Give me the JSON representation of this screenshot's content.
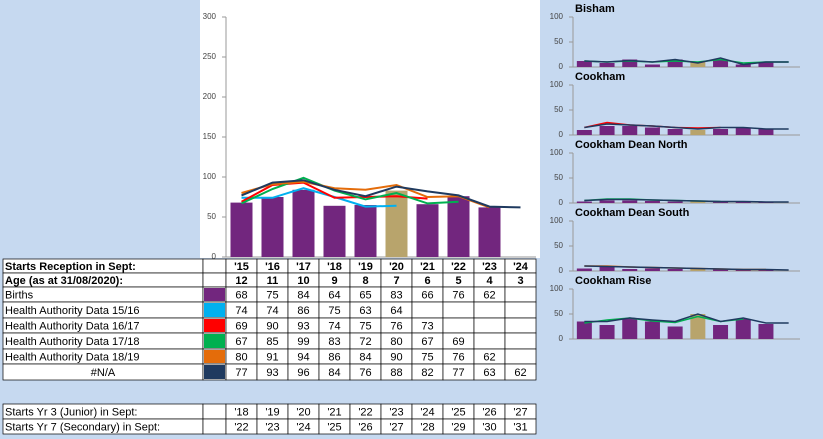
{
  "chart_data": [
    {
      "type": "combo",
      "ylim": [
        0,
        300
      ],
      "yticks": [
        0,
        50,
        100,
        150,
        200,
        250,
        300
      ],
      "categories": [
        "'15",
        "'16",
        "'17",
        "'18",
        "'19",
        "'20",
        "'21",
        "'22",
        "'23",
        "'24"
      ],
      "highlight": {
        "index": 5,
        "color": "#b8a46c"
      },
      "series": [
        {
          "name": "Births",
          "type": "bar",
          "color": "#72267e",
          "values": [
            68,
            75,
            84,
            64,
            65,
            83,
            66,
            76,
            62,
            null
          ]
        },
        {
          "name": "Health Authority Data 15/16",
          "type": "line",
          "color": "#00b0f0",
          "values": [
            74,
            74,
            86,
            75,
            63,
            64,
            null,
            null,
            null,
            null
          ]
        },
        {
          "name": "Health Authority Data 16/17",
          "type": "line",
          "color": "#ff0000",
          "values": [
            69,
            90,
            93,
            74,
            75,
            76,
            73,
            null,
            null,
            null
          ]
        },
        {
          "name": "Health Authority Data 17/18",
          "type": "line",
          "color": "#00b050",
          "values": [
            67,
            85,
            99,
            83,
            72,
            80,
            67,
            69,
            null,
            null
          ]
        },
        {
          "name": "Health Authority Data 18/19",
          "type": "line",
          "color": "#e46c0a",
          "values": [
            80,
            91,
            94,
            86,
            84,
            90,
            75,
            76,
            62,
            null
          ]
        },
        {
          "name": "#N/A",
          "type": "line",
          "color": "#1f3a5f",
          "values": [
            77,
            93,
            96,
            84,
            76,
            88,
            82,
            77,
            63,
            62
          ]
        }
      ]
    },
    {
      "type": "combo",
      "title": "Bisham",
      "ylim": [
        0,
        100
      ],
      "yticks": [
        0,
        50,
        100
      ],
      "highlight": {
        "index": 5,
        "color": "#b8a46c"
      },
      "series": [
        {
          "type": "bar",
          "color": "#72267e",
          "values": [
            12,
            8,
            15,
            5,
            15,
            10,
            15,
            5,
            10,
            null
          ]
        },
        {
          "type": "line",
          "color": "#00b050",
          "values": [
            12,
            10,
            12,
            10,
            12,
            10,
            15,
            8,
            10,
            10
          ]
        },
        {
          "type": "line",
          "color": "#1f3a5f",
          "values": [
            12,
            10,
            13,
            10,
            15,
            8,
            18,
            5,
            10,
            10
          ]
        }
      ]
    },
    {
      "type": "combo",
      "title": "Cookham",
      "ylim": [
        0,
        100
      ],
      "yticks": [
        0,
        50,
        100
      ],
      "highlight": {
        "index": 5,
        "color": "#b8a46c"
      },
      "series": [
        {
          "type": "bar",
          "color": "#72267e",
          "values": [
            10,
            18,
            18,
            15,
            12,
            10,
            12,
            15,
            12,
            null
          ]
        },
        {
          "type": "line",
          "color": "#ff0000",
          "values": [
            15,
            25,
            20,
            18,
            15,
            14,
            15,
            null,
            null,
            null
          ]
        },
        {
          "type": "line",
          "color": "#1f3a5f",
          "values": [
            15,
            22,
            20,
            18,
            15,
            12,
            15,
            15,
            12,
            12
          ]
        }
      ]
    },
    {
      "type": "combo",
      "title": "Cookham Dean North",
      "ylim": [
        0,
        100
      ],
      "yticks": [
        0,
        50,
        100
      ],
      "highlight": {
        "index": 5,
        "color": "#b8a46c"
      },
      "series": [
        {
          "type": "bar",
          "color": "#72267e",
          "values": [
            3,
            5,
            5,
            4,
            3,
            3,
            3,
            3,
            2,
            null
          ]
        },
        {
          "type": "line",
          "color": "#00b050",
          "values": [
            5,
            8,
            8,
            6,
            5,
            4,
            3,
            null,
            null,
            null
          ]
        },
        {
          "type": "line",
          "color": "#1f3a5f",
          "values": [
            5,
            7,
            7,
            6,
            5,
            4,
            3,
            3,
            2,
            2
          ]
        }
      ]
    },
    {
      "type": "combo",
      "title": "Cookham Dean South",
      "ylim": [
        0,
        100
      ],
      "yticks": [
        0,
        50,
        100
      ],
      "highlight": {
        "index": 5,
        "color": "#b8a46c"
      },
      "series": [
        {
          "type": "bar",
          "color": "#72267e",
          "values": [
            5,
            8,
            4,
            5,
            4,
            5,
            3,
            3,
            2,
            null
          ]
        },
        {
          "type": "line",
          "color": "#e46c0a",
          "values": [
            10,
            10,
            8,
            7,
            6,
            5,
            4,
            3,
            3,
            null
          ]
        },
        {
          "type": "line",
          "color": "#1f3a5f",
          "values": [
            10,
            9,
            8,
            7,
            6,
            5,
            4,
            3,
            3,
            2
          ]
        }
      ]
    },
    {
      "type": "combo",
      "title": "Cookham Rise",
      "ylim": [
        0,
        100
      ],
      "yticks": [
        0,
        50,
        100
      ],
      "highlight": {
        "index": 5,
        "color": "#b8a46c"
      },
      "series": [
        {
          "type": "bar",
          "color": "#72267e",
          "values": [
            35,
            28,
            40,
            35,
            25,
            50,
            28,
            40,
            30,
            null
          ]
        },
        {
          "type": "line",
          "color": "#00b050",
          "values": [
            32,
            38,
            42,
            36,
            33,
            45,
            35,
            40,
            null,
            null
          ]
        },
        {
          "type": "line",
          "color": "#1f3a5f",
          "values": [
            35,
            35,
            42,
            38,
            35,
            50,
            35,
            42,
            32,
            32
          ]
        }
      ]
    }
  ],
  "table": {
    "header_label": "Starts Reception in Sept:",
    "age_label": "Age (as at 31/08/2020):",
    "ages": [
      12,
      11,
      10,
      9,
      8,
      7,
      6,
      5,
      4,
      3
    ],
    "junior": {
      "label": "Starts Yr 3 (Junior) in Sept:",
      "years": [
        "'18",
        "'19",
        "'20",
        "'21",
        "'22",
        "'23",
        "'24",
        "'25",
        "'26",
        "'27"
      ]
    },
    "secondary": {
      "label": "Starts Yr 7 (Secondary) in Sept:",
      "years": [
        "'22",
        "'23",
        "'24",
        "'25",
        "'26",
        "'27",
        "'28",
        "'29",
        "'30",
        "'31"
      ]
    }
  }
}
